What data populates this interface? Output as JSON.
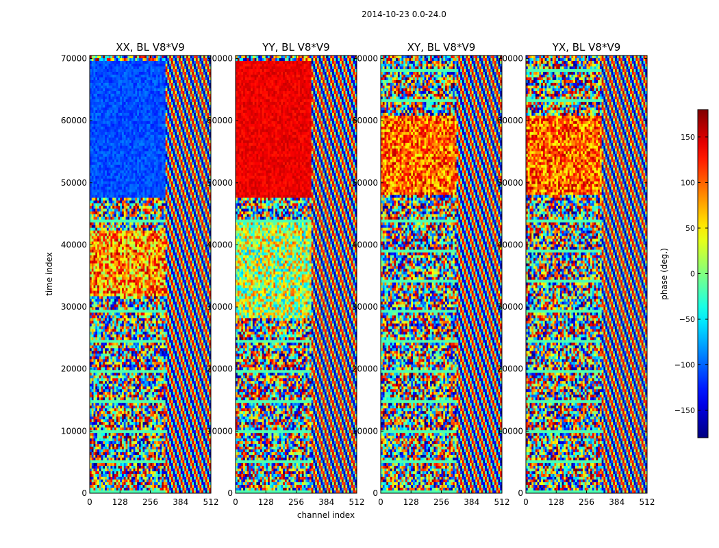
{
  "figure": {
    "suptitle": "2014-10-23 0.0-24.0"
  },
  "chart_data": {
    "type": "heatmap",
    "colormap": "jet",
    "xlabel": "channel index",
    "ylabel": "time index",
    "xlim": [
      0,
      512
    ],
    "ylim": [
      0,
      70500
    ],
    "xticks": [
      0,
      128,
      256,
      384,
      512
    ],
    "xtick_labels": [
      "0",
      "128",
      "256",
      "384",
      "512"
    ],
    "yticks": [
      0,
      10000,
      20000,
      30000,
      40000,
      50000,
      60000,
      70000
    ],
    "ytick_labels": [
      "0",
      "10000",
      "20000",
      "30000",
      "40000",
      "50000",
      "60000",
      "70000"
    ],
    "panels": [
      {
        "title": "XX, BL V8*V9",
        "pol": "XX"
      },
      {
        "title": "YY, BL V8*V9",
        "pol": "YY"
      },
      {
        "title": "XY, BL V8*V9",
        "pol": "XY"
      },
      {
        "title": "YX, BL V8*V9",
        "pol": "YX"
      }
    ],
    "colorbar": {
      "label": "phase (deg.)",
      "range": [
        -180,
        180
      ],
      "ticks": [
        150,
        100,
        50,
        0,
        -50,
        -100,
        -150
      ],
      "tick_labels": [
        "150",
        "100",
        "50",
        "0",
        "−50",
        "−100",
        "−150"
      ]
    }
  }
}
